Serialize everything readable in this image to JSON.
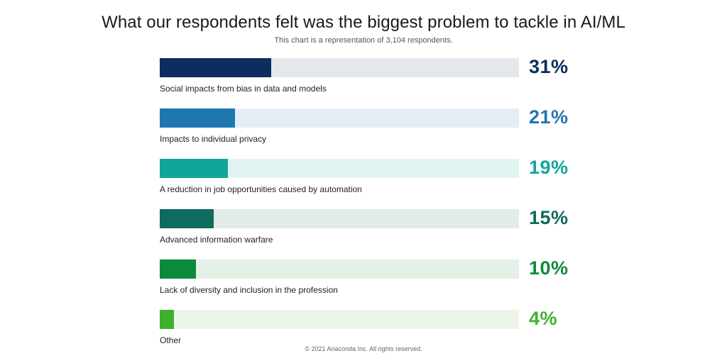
{
  "chart_data": {
    "type": "bar",
    "title": "What our respondents felt was the biggest problem to tackle in AI/ML",
    "subtitle": "This chart is a representation of 3,104 respondents.",
    "unit": "%",
    "xlim": [
      0,
      100
    ],
    "categories": [
      "Social impacts from bias in data and models",
      "Impacts to individual privacy",
      "A reduction in job opportunities caused by automation",
      "Advanced information warfare",
      "Lack of diversity and inclusion in the profession",
      "Other"
    ],
    "values": [
      31,
      21,
      19,
      15,
      10,
      4
    ],
    "value_labels": [
      "31%",
      "21%",
      "19%",
      "15%",
      "10%",
      "4%"
    ],
    "colors": [
      "#0d2d5e",
      "#1f77b0",
      "#12a59c",
      "#0e6b5e",
      "#0c8a3a",
      "#3fb02e"
    ],
    "track_colors": [
      "#e4e8ec",
      "#e5eef6",
      "#e2f4f2",
      "#e2ebe8",
      "#e3f1e6",
      "#ebf6e8"
    ],
    "grid": false
  },
  "footer": {
    "copyright": "© 2021 Anaconda Inc. All rights reserved."
  }
}
